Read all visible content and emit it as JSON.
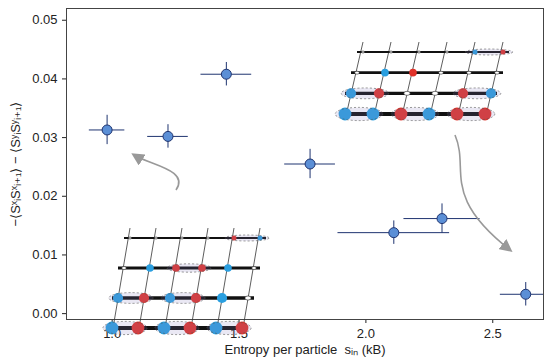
{
  "chart_data": {
    "type": "scatter",
    "x_label": "Entropy per particle  sᵢₙ (kB)",
    "y_label": "−⟨SˣᵢSˣᵢ₊₁⟩ − ⟨SʸᵢSʸᵢ₊₁⟩",
    "x": [
      0.98,
      1.22,
      1.45,
      1.78,
      2.11,
      2.3,
      2.63
    ],
    "values": [
      0.0313,
      0.0302,
      0.0408,
      0.0255,
      0.0138,
      0.0162,
      0.0033
    ],
    "x_err": [
      0.07,
      0.08,
      0.1,
      0.1,
      0.22,
      0.15,
      0.1
    ],
    "y_err": [
      0.0025,
      0.002,
      0.002,
      0.0025,
      0.002,
      0.0025,
      0.002
    ],
    "color": "#5b8fd6",
    "marker": "circle",
    "xlim": [
      0.82,
      2.7
    ],
    "ylim": [
      -0.001,
      0.052
    ],
    "xticks": [
      {
        "value": 1,
        "label": "1.0"
      },
      {
        "value": 1.5,
        "label": "1.5"
      },
      {
        "value": 2,
        "label": "2.0"
      },
      {
        "value": 2.5,
        "label": "2.5"
      }
    ],
    "yticks": [
      {
        "value": 0,
        "label": "0.00"
      },
      {
        "value": 0.01,
        "label": "0.01"
      },
      {
        "value": 0.02,
        "label": "0.02"
      },
      {
        "value": 0.03,
        "label": "0.03"
      },
      {
        "value": 0.04,
        "label": "0.04"
      },
      {
        "value": 0.05,
        "label": "0.05"
      }
    ],
    "grid": false
  }
}
